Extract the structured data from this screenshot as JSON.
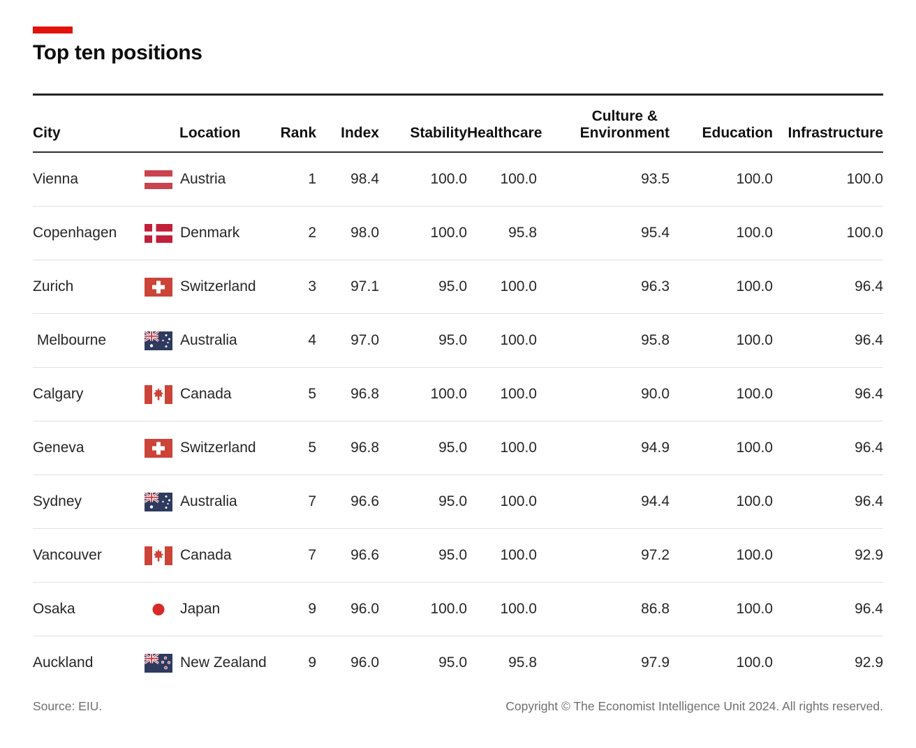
{
  "title": "Top ten positions",
  "colors": {
    "accent_red": "#E3120B",
    "rule_dark": "#262626",
    "row_line": "#E0E0E0",
    "body_text": "#262626",
    "footer_text": "#6F6F6F",
    "flag_navy": "#2E3A5E",
    "flag_red_austria": "#C8444E",
    "flag_red_denmark": "#C21F3A",
    "flag_red_swiss": "#CC4338",
    "flag_red_canada": "#CC4338",
    "flag_red_japan": "#D62B29",
    "flag_red_jack": "#C8444E"
  },
  "table": {
    "headers": [
      {
        "key": "city",
        "label": "City",
        "align": "left"
      },
      {
        "key": "location",
        "label": "Location",
        "align": "left"
      },
      {
        "key": "rank",
        "label": "Rank",
        "align": "right"
      },
      {
        "key": "index",
        "label": "Index",
        "align": "right"
      },
      {
        "key": "stability",
        "label": "Stability",
        "align": "right"
      },
      {
        "key": "healthcare",
        "label": "Healthcare",
        "align": "right"
      },
      {
        "key": "culture_environment",
        "label": "Culture & Environment",
        "lines": [
          "Culture &",
          "Environment"
        ],
        "align": "right"
      },
      {
        "key": "education",
        "label": "Education",
        "align": "right"
      },
      {
        "key": "infrastructure",
        "label": "Infrastructure",
        "align": "right"
      }
    ],
    "rows": [
      {
        "city": "Vienna",
        "flag": "austria",
        "location": "Austria",
        "rank": "1",
        "index": "98.4",
        "stability": "100.0",
        "healthcare": "100.0",
        "culture_environment": "93.5",
        "education": "100.0",
        "infrastructure": "100.0"
      },
      {
        "city": "Copenhagen",
        "flag": "denmark",
        "location": "Denmark",
        "rank": "2",
        "index": "98.0",
        "stability": "100.0",
        "healthcare": "95.8",
        "culture_environment": "95.4",
        "education": "100.0",
        "infrastructure": "100.0"
      },
      {
        "city": "Zurich",
        "flag": "switzerland",
        "location": "Switzerland",
        "rank": "3",
        "index": "97.1",
        "stability": "95.0",
        "healthcare": "100.0",
        "culture_environment": "96.3",
        "education": "100.0",
        "infrastructure": "96.4"
      },
      {
        "city": " Melbourne",
        "flag": "australia",
        "location": "Australia",
        "rank": "4",
        "index": "97.0",
        "stability": "95.0",
        "healthcare": "100.0",
        "culture_environment": "95.8",
        "education": "100.0",
        "infrastructure": "96.4"
      },
      {
        "city": "Calgary",
        "flag": "canada",
        "location": "Canada",
        "rank": "5",
        "index": "96.8",
        "stability": "100.0",
        "healthcare": "100.0",
        "culture_environment": "90.0",
        "education": "100.0",
        "infrastructure": "96.4"
      },
      {
        "city": "Geneva",
        "flag": "switzerland",
        "location": "Switzerland",
        "rank": "5",
        "index": "96.8",
        "stability": "95.0",
        "healthcare": "100.0",
        "culture_environment": "94.9",
        "education": "100.0",
        "infrastructure": "96.4"
      },
      {
        "city": "Sydney",
        "flag": "australia",
        "location": "Australia",
        "rank": "7",
        "index": "96.6",
        "stability": "95.0",
        "healthcare": "100.0",
        "culture_environment": "94.4",
        "education": "100.0",
        "infrastructure": "96.4"
      },
      {
        "city": "Vancouver",
        "flag": "canada",
        "location": "Canada",
        "rank": "7",
        "index": "96.6",
        "stability": "95.0",
        "healthcare": "100.0",
        "culture_environment": "97.2",
        "education": "100.0",
        "infrastructure": "92.9"
      },
      {
        "city": "Osaka",
        "flag": "japan",
        "location": "Japan",
        "rank": "9",
        "index": "96.0",
        "stability": "100.0",
        "healthcare": "100.0",
        "culture_environment": "86.8",
        "education": "100.0",
        "infrastructure": "96.4"
      },
      {
        "city": "Auckland",
        "flag": "new-zealand",
        "location": "New Zealand",
        "rank": "9",
        "index": "96.0",
        "stability": "95.0",
        "healthcare": "95.8",
        "culture_environment": "97.9",
        "education": "100.0",
        "infrastructure": "92.9"
      }
    ]
  },
  "footer": {
    "source": "Source: EIU.",
    "copyright": "Copyright © The Economist Intelligence Unit 2024. All rights reserved."
  },
  "chart_data": {
    "type": "table",
    "title": "Top ten positions",
    "columns": [
      "City",
      "Location",
      "Rank",
      "Index",
      "Stability",
      "Healthcare",
      "Culture & Environment",
      "Education",
      "Infrastructure"
    ],
    "rows": [
      [
        "Vienna",
        "Austria",
        1,
        98.4,
        100.0,
        100.0,
        93.5,
        100.0,
        100.0
      ],
      [
        "Copenhagen",
        "Denmark",
        2,
        98.0,
        100.0,
        95.8,
        95.4,
        100.0,
        100.0
      ],
      [
        "Zurich",
        "Switzerland",
        3,
        97.1,
        95.0,
        100.0,
        96.3,
        100.0,
        96.4
      ],
      [
        "Melbourne",
        "Australia",
        4,
        97.0,
        95.0,
        100.0,
        95.8,
        100.0,
        96.4
      ],
      [
        "Calgary",
        "Canada",
        5,
        96.8,
        100.0,
        100.0,
        90.0,
        100.0,
        96.4
      ],
      [
        "Geneva",
        "Switzerland",
        5,
        96.8,
        95.0,
        100.0,
        94.9,
        100.0,
        96.4
      ],
      [
        "Sydney",
        "Australia",
        7,
        96.6,
        95.0,
        100.0,
        94.4,
        100.0,
        96.4
      ],
      [
        "Vancouver",
        "Canada",
        7,
        96.6,
        95.0,
        100.0,
        97.2,
        100.0,
        92.9
      ],
      [
        "Osaka",
        "Japan",
        9,
        96.0,
        100.0,
        100.0,
        86.8,
        100.0,
        96.4
      ],
      [
        "Auckland",
        "New Zealand",
        9,
        96.0,
        95.0,
        95.8,
        97.9,
        100.0,
        92.9
      ]
    ],
    "source": "EIU"
  }
}
